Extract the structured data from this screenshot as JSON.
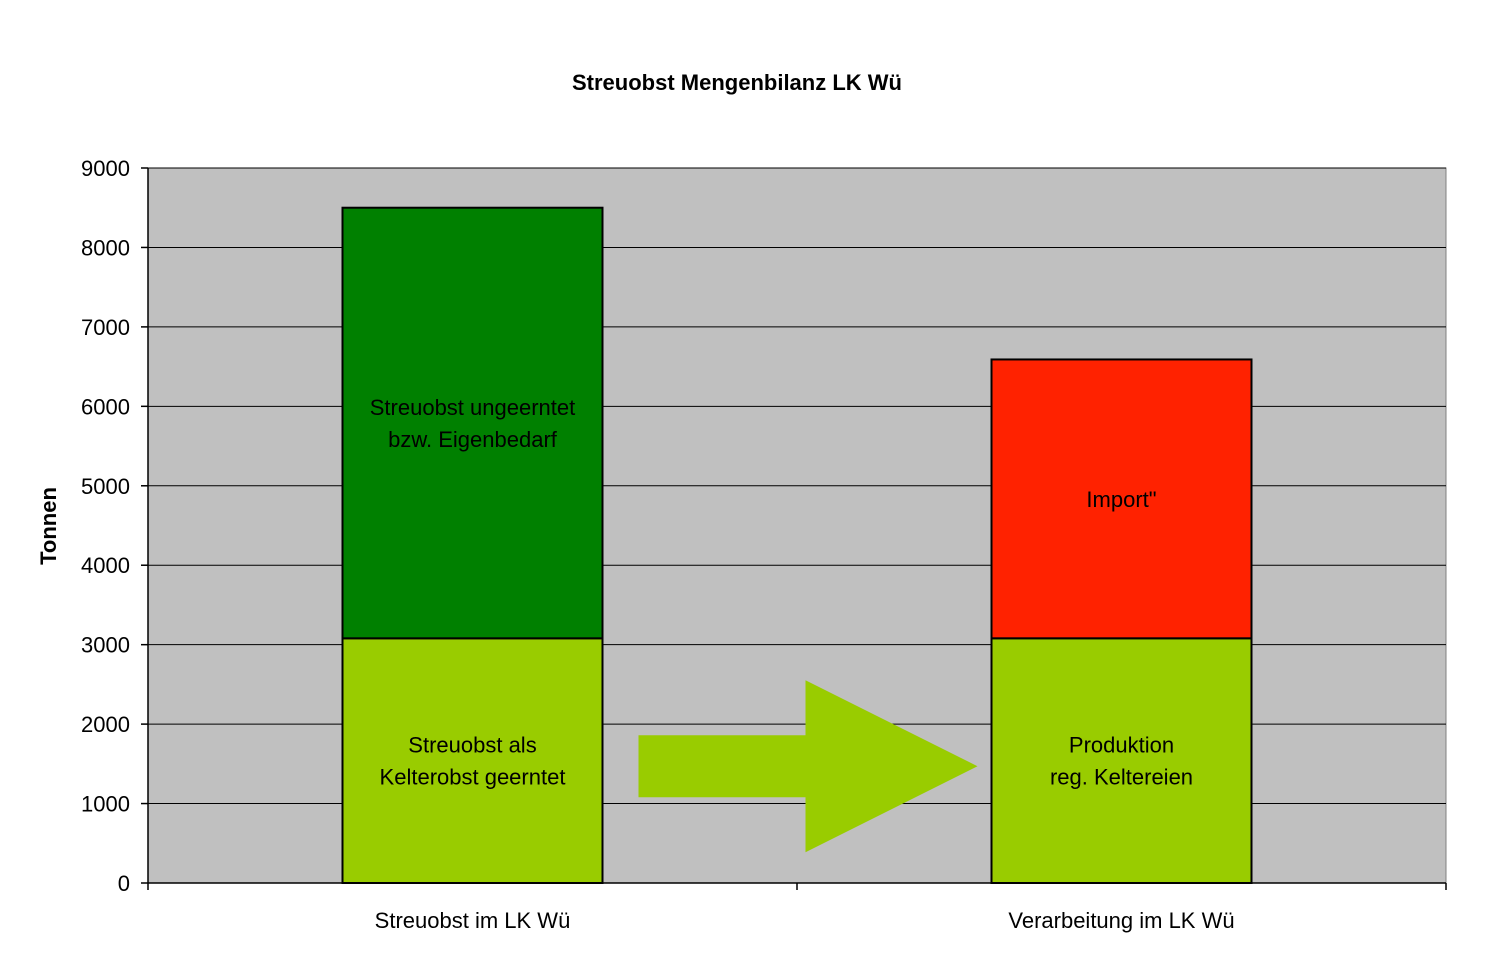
{
  "chart_data": {
    "type": "bar",
    "stacked": true,
    "title": "Streuobst Mengenbilanz LK Wü",
    "xlabel": "",
    "ylabel": "Tonnen",
    "ylim": [
      0,
      9000
    ],
    "yticks": [
      0,
      1000,
      2000,
      3000,
      4000,
      5000,
      6000,
      7000,
      8000,
      9000
    ],
    "grid": true,
    "legend": "none",
    "categories": [
      "Streuobst im LK Wü",
      "Verarbeitung im LK Wü"
    ],
    "bars": [
      {
        "category": "Streuobst im LK Wü",
        "segments": [
          {
            "value": 3080,
            "label_lines": [
              "Streuobst als",
              "Kelterobst geerntet"
            ],
            "color": "#99cc00"
          },
          {
            "value": 5420,
            "label_lines": [
              "Streuobst ungeerntet",
              "bzw. Eigenbedarf"
            ],
            "color": "#008000"
          }
        ]
      },
      {
        "category": "Verarbeitung im LK Wü",
        "segments": [
          {
            "value": 3080,
            "label_lines": [
              "Produktion",
              "reg. Keltereien"
            ],
            "color": "#99cc00"
          },
          {
            "value": 3510,
            "label_lines": [
              "Import\""
            ],
            "color": "#ff2200"
          }
        ]
      }
    ],
    "plot_background": "#c0c0c0",
    "arrow_color": "#99cc00"
  }
}
